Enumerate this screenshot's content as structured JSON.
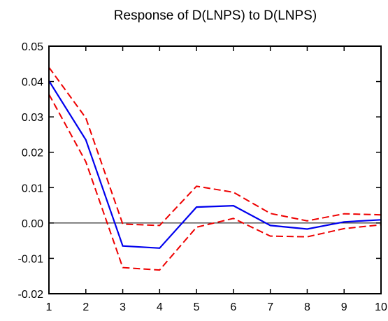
{
  "chart_data": {
    "type": "line",
    "title": "Response of D(LNPS) to D(LNPS)",
    "xlabel": "",
    "ylabel": "",
    "x": [
      1,
      2,
      3,
      4,
      5,
      6,
      7,
      8,
      9,
      10
    ],
    "x_tick_labels": [
      "1",
      "2",
      "3",
      "4",
      "5",
      "6",
      "7",
      "8",
      "9",
      "10"
    ],
    "ylim": [
      -0.02,
      0.05
    ],
    "y_ticks": [
      -0.02,
      -0.01,
      0.0,
      0.01,
      0.02,
      0.03,
      0.04,
      0.05
    ],
    "y_tick_labels": [
      "-0.02",
      "-0.01",
      "0.00",
      "0.01",
      "0.02",
      "0.03",
      "0.04",
      "0.05"
    ],
    "zero_line": true,
    "grid": false,
    "legend": "none",
    "series": [
      {
        "role": "response",
        "style": "solid",
        "color": "#0000ee",
        "values": [
          0.0402,
          0.0235,
          -0.0065,
          -0.0071,
          0.0045,
          0.0049,
          -0.0007,
          -0.0017,
          0.0003,
          0.0009
        ]
      },
      {
        "role": "upper-band",
        "style": "dashed",
        "color": "#ee0000",
        "values": [
          0.044,
          0.0297,
          -0.0003,
          -0.0007,
          0.0104,
          0.0087,
          0.0027,
          0.0006,
          0.0026,
          0.0023
        ]
      },
      {
        "role": "lower-band",
        "style": "dashed",
        "color": "#ee0000",
        "values": [
          0.0364,
          0.0173,
          -0.0126,
          -0.0133,
          -0.0012,
          0.0013,
          -0.0037,
          -0.0039,
          -0.0016,
          -0.0005
        ]
      }
    ]
  }
}
